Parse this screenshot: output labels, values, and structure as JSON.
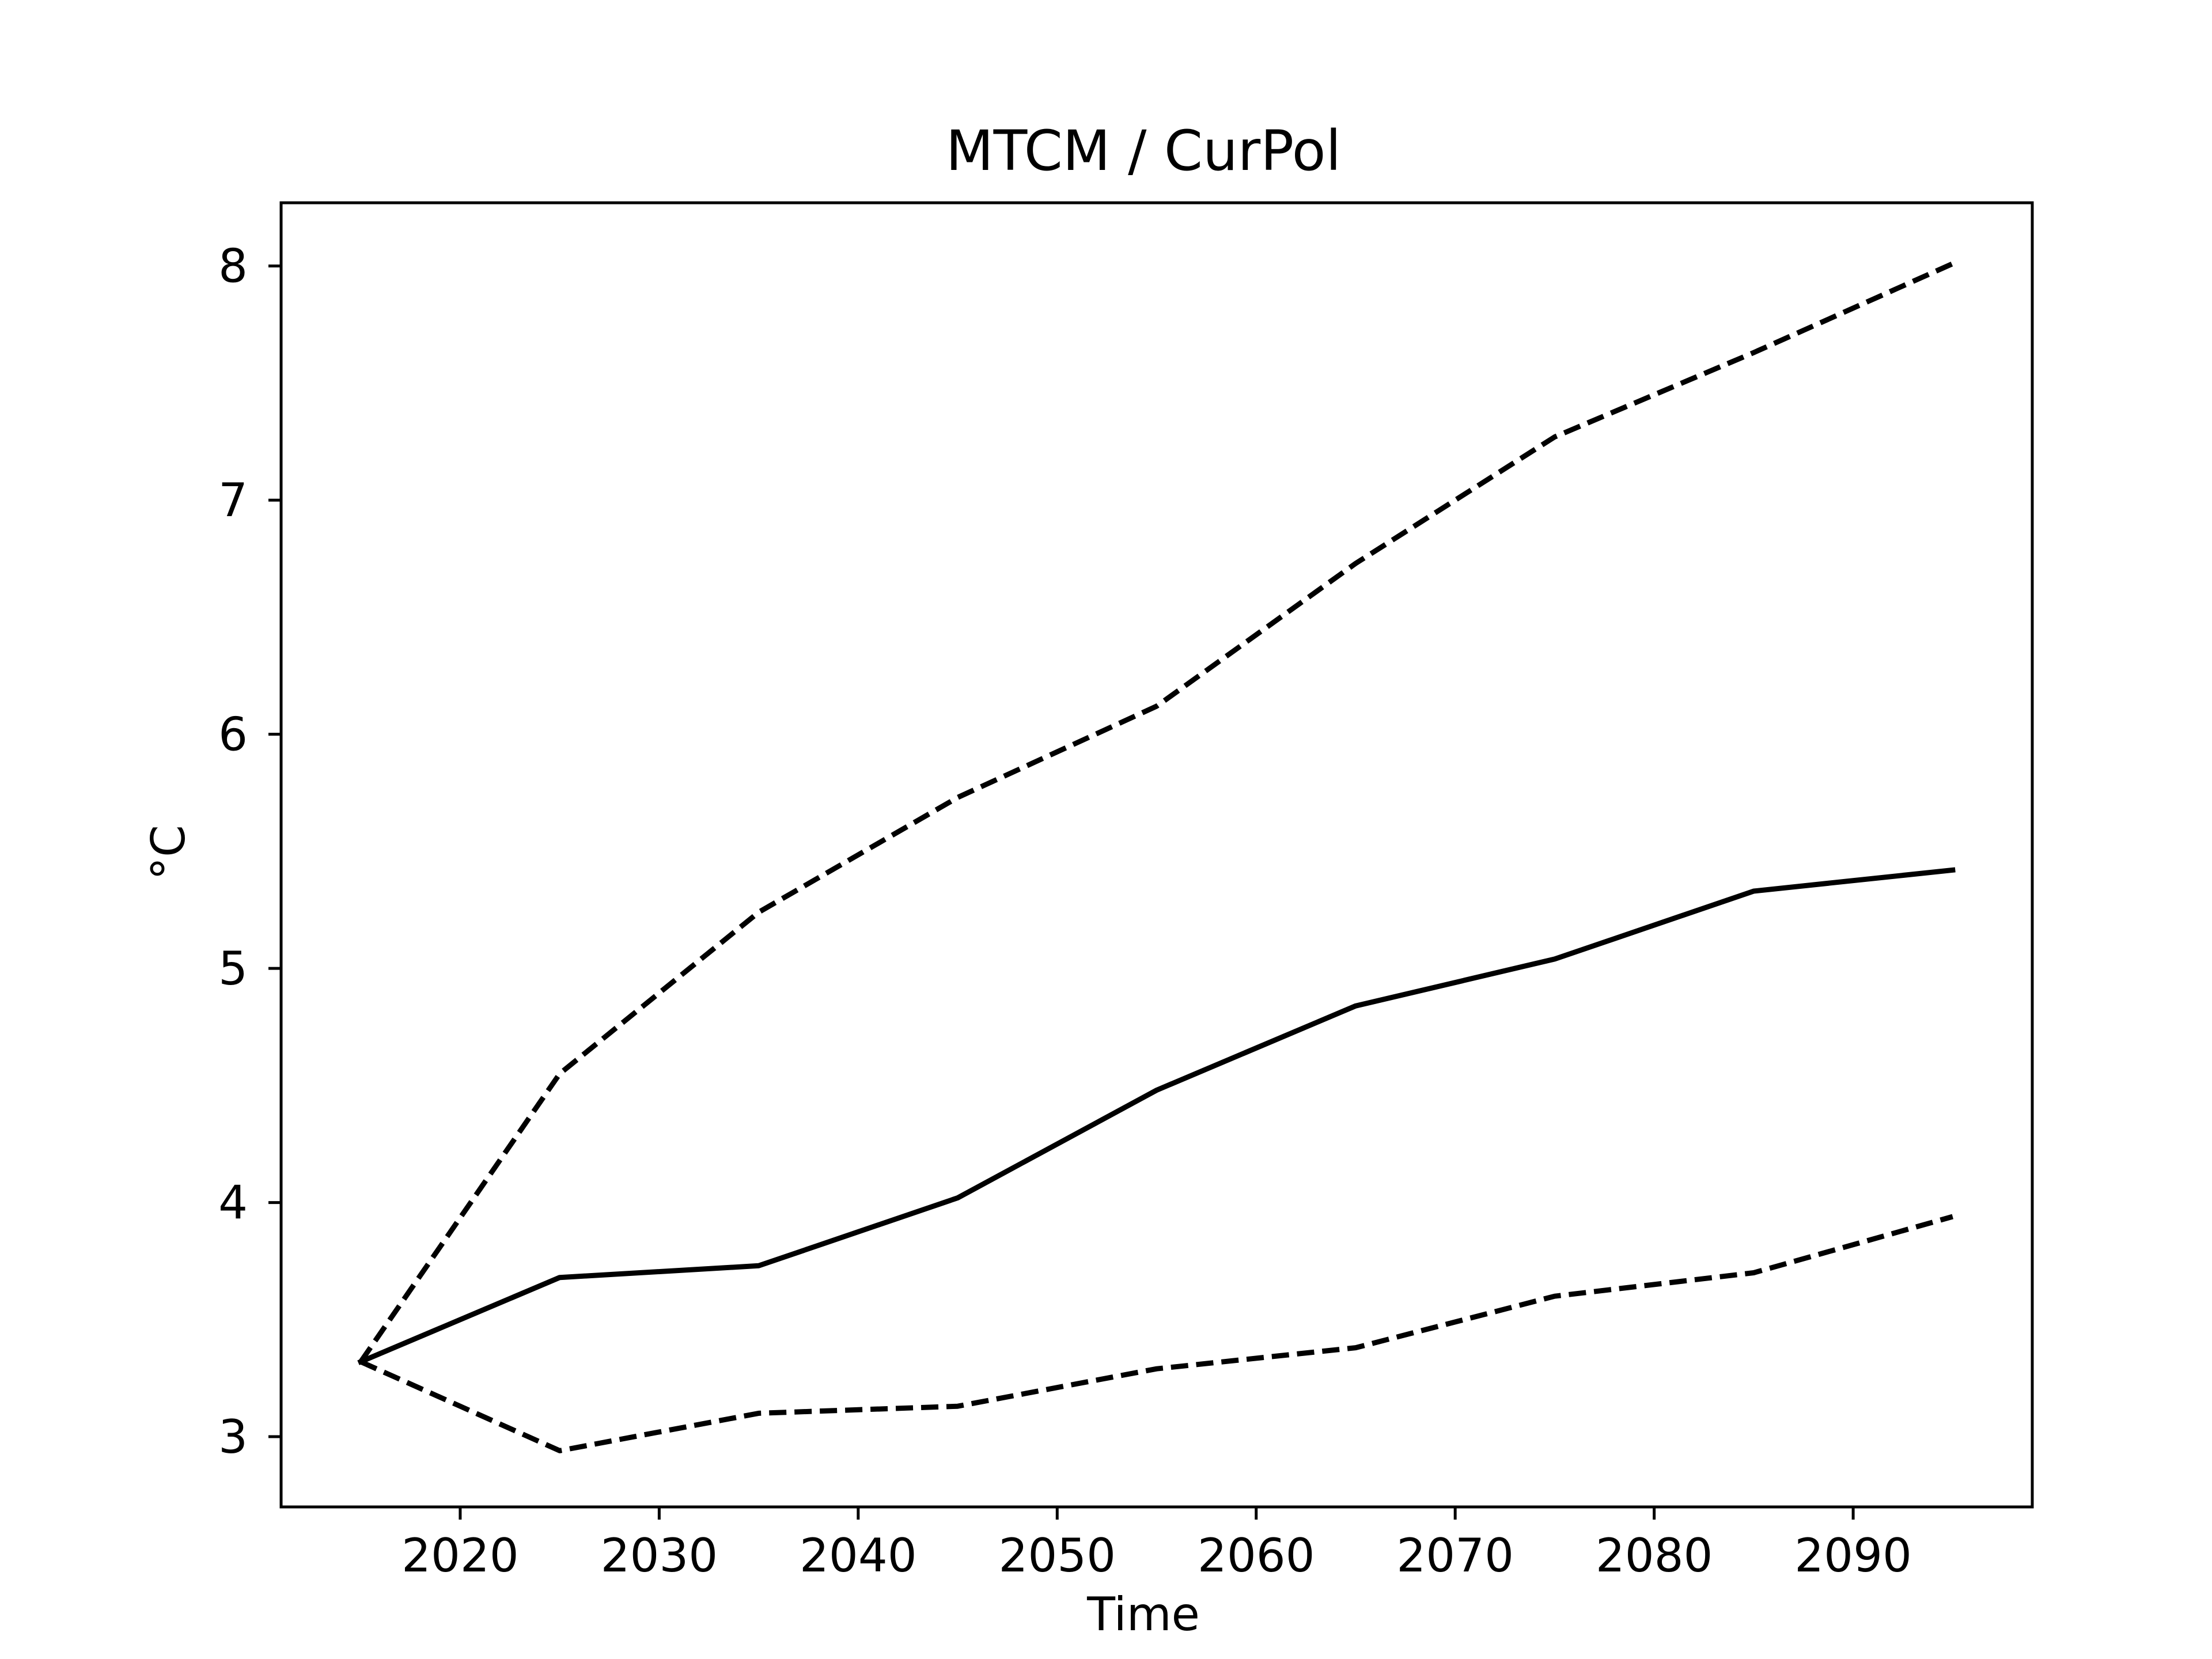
{
  "chart_data": {
    "type": "line",
    "title": "MTCM / CurPol",
    "xlabel": "Time",
    "ylabel": "°C",
    "xlim": [
      2011,
      2099
    ],
    "ylim": [
      2.7,
      8.27
    ],
    "xticks": [
      2020,
      2030,
      2040,
      2050,
      2060,
      2070,
      2080,
      2090
    ],
    "yticks": [
      3,
      4,
      5,
      6,
      7,
      8
    ],
    "grid": false,
    "legend": "none",
    "x": [
      2015,
      2025,
      2035,
      2045,
      2055,
      2065,
      2075,
      2085,
      2095
    ],
    "series": [
      {
        "style": "solid",
        "color": "#000000",
        "values": [
          3.32,
          3.68,
          3.73,
          4.02,
          4.48,
          4.84,
          5.04,
          5.33,
          5.42
        ]
      },
      {
        "style": "dashed",
        "color": "#000000",
        "values": [
          3.32,
          4.55,
          5.24,
          5.73,
          6.12,
          6.73,
          7.27,
          7.63,
          8.01
        ]
      },
      {
        "style": "dashed",
        "color": "#000000",
        "values": [
          3.32,
          2.94,
          3.1,
          3.13,
          3.29,
          3.38,
          3.6,
          3.7,
          3.94
        ]
      }
    ]
  }
}
